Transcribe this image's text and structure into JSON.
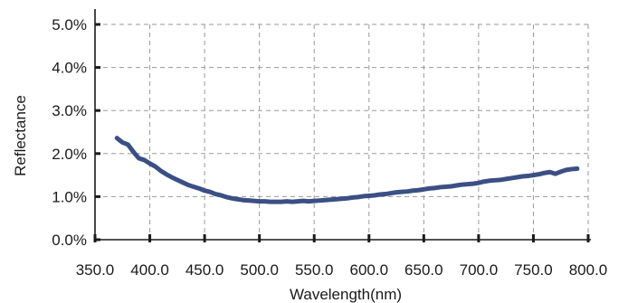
{
  "chart_data": {
    "type": "line",
    "xlabel": "Wavelength(nm)",
    "ylabel": "Reflectance",
    "xlim": [
      350,
      800
    ],
    "ylim": [
      0,
      0.05
    ],
    "grid": true,
    "x_ticks": [
      350,
      400,
      450,
      500,
      550,
      600,
      650,
      700,
      750,
      800
    ],
    "x_tick_labels": [
      "350.0",
      "400.0",
      "450.0",
      "500.0",
      "550.0",
      "600.0",
      "650.0",
      "700.0",
      "750.0",
      "800.0"
    ],
    "y_ticks": [
      0,
      0.01,
      0.02,
      0.03,
      0.04,
      0.05
    ],
    "y_tick_labels": [
      "0.0%",
      "1.0%",
      "2.0%",
      "3.0%",
      "4.0%",
      "5.0%"
    ],
    "series": [
      {
        "color": "#3b4f85",
        "x": [
          370,
          375,
          380,
          385,
          390,
          395,
          400,
          405,
          410,
          415,
          420,
          425,
          430,
          435,
          440,
          445,
          450,
          455,
          460,
          465,
          470,
          475,
          480,
          485,
          490,
          495,
          500,
          505,
          510,
          515,
          520,
          525,
          530,
          535,
          540,
          545,
          550,
          555,
          560,
          565,
          570,
          575,
          580,
          585,
          590,
          595,
          600,
          605,
          610,
          615,
          620,
          625,
          630,
          635,
          640,
          645,
          650,
          655,
          660,
          665,
          670,
          675,
          680,
          685,
          690,
          695,
          700,
          705,
          710,
          715,
          720,
          725,
          730,
          735,
          740,
          745,
          750,
          755,
          760,
          765,
          770,
          775,
          780,
          785,
          790
        ],
        "y": [
          0.0236,
          0.0226,
          0.0221,
          0.0204,
          0.0189,
          0.0185,
          0.0177,
          0.017,
          0.016,
          0.0152,
          0.0145,
          0.0139,
          0.0133,
          0.0127,
          0.0123,
          0.0119,
          0.0114,
          0.0111,
          0.0106,
          0.0103,
          0.0099,
          0.0096,
          0.0094,
          0.0092,
          0.0091,
          0.009,
          0.0089,
          0.0089,
          0.0088,
          0.0088,
          0.0088,
          0.0089,
          0.0088,
          0.0089,
          0.009,
          0.0089,
          0.009,
          0.0091,
          0.0092,
          0.0093,
          0.0094,
          0.0095,
          0.0096,
          0.0098,
          0.0099,
          0.0101,
          0.0102,
          0.0103,
          0.0105,
          0.0106,
          0.0108,
          0.011,
          0.0111,
          0.0112,
          0.0114,
          0.0115,
          0.0117,
          0.0119,
          0.012,
          0.0122,
          0.0123,
          0.0124,
          0.0126,
          0.0128,
          0.0129,
          0.013,
          0.0132,
          0.0135,
          0.0137,
          0.0138,
          0.0139,
          0.0141,
          0.0143,
          0.0145,
          0.0147,
          0.0148,
          0.015,
          0.0152,
          0.0155,
          0.0157,
          0.0153,
          0.0158,
          0.0162,
          0.0164,
          0.0165
        ]
      }
    ],
    "colors": {
      "axis": "#1a1a1a",
      "grid": "#9a9a9a",
      "text": "#1a1a1a",
      "line": "#3b4f85"
    }
  }
}
